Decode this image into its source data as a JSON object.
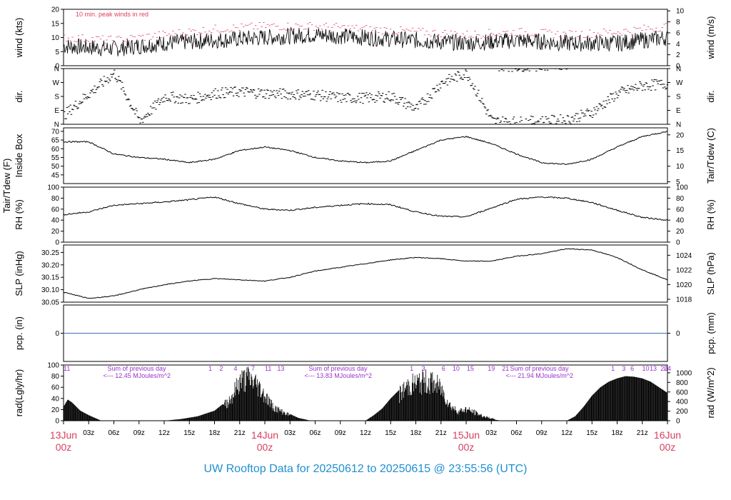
{
  "title": "UW Rooftop Data for 20250612  to  20250615 @ 23:55:56  (UTC)",
  "colors": {
    "title": "#1f8fd1",
    "date": "#d6405f",
    "peak": "#e0405f",
    "note": "#9933cc",
    "pcp": "#3a6fc2",
    "trace": "#000000"
  },
  "chart_data": {
    "type": "line",
    "x_ticks": [
      "03z",
      "06z",
      "09z",
      "12z",
      "15z",
      "18z",
      "21z",
      "03z",
      "06z",
      "09z",
      "12z",
      "15z",
      "18z",
      "21z",
      "03z",
      "06z",
      "09z",
      "12z",
      "15z",
      "18z",
      "21z"
    ],
    "date_labels": [
      {
        "day": "13Jun",
        "time": "00z"
      },
      {
        "day": "14Jun",
        "time": "00z"
      },
      {
        "day": "15Jun",
        "time": "00z"
      },
      {
        "day": "16Jun",
        "time": "00z"
      }
    ],
    "panels": [
      {
        "id": "wind",
        "ylabel": "wind (kts)",
        "ylabel_right": "wind (m/s)",
        "ylim": [
          0,
          20
        ],
        "yticks": [
          "0",
          "5",
          "10",
          "15",
          "20"
        ],
        "yticks_right": [
          "0",
          "2",
          "4",
          "6",
          "8",
          "10"
        ],
        "annotation": "10 min. peak winds in red",
        "series": [
          {
            "name": "wind",
            "hours": [
              0,
              6,
              12,
              18,
              24,
              30,
              36,
              42,
              48,
              54,
              60,
              66,
              72
            ],
            "values": [
              7,
              6,
              8,
              9,
              10,
              11,
              10,
              9,
              8,
              9,
              8,
              8,
              10
            ]
          },
          {
            "name": "peak",
            "hours": [
              0,
              6,
              12,
              18,
              24,
              30,
              36,
              42,
              48,
              54,
              60,
              66,
              72
            ],
            "values": [
              10,
              9,
              11,
              13,
              14,
              14,
              13,
              12,
              11,
              12,
              11,
              12,
              14
            ]
          }
        ]
      },
      {
        "id": "dir",
        "ylabel": "dir.",
        "ylabel_right": "dir.",
        "ylim": [
          0,
          360
        ],
        "yticks": [
          "N",
          "E",
          "S",
          "W",
          "N"
        ],
        "yticks_right": [
          "N",
          "E",
          "S",
          "W",
          "N"
        ],
        "series": [
          {
            "name": "dir",
            "hours": [
              0,
              3,
              6,
              9,
              12,
              15,
              18,
              21,
              24,
              27,
              30,
              33,
              36,
              39,
              42,
              45,
              48,
              51,
              54,
              57,
              60,
              63,
              66,
              69,
              72
            ],
            "values": [
              60,
              200,
              330,
              20,
              180,
              160,
              200,
              210,
              200,
              195,
              190,
              170,
              170,
              180,
              100,
              270,
              330,
              20,
              15,
              20,
              30,
              80,
              200,
              250,
              260
            ]
          }
        ]
      },
      {
        "id": "temp",
        "ylabel": "Tair/Tdew (F)",
        "ylabel2": "Inside Box",
        "ylabel_right": "Tair/Tdew (C)",
        "ylim": [
          40,
          72
        ],
        "yticks": [
          "45",
          "50",
          "55",
          "60",
          "65",
          "70"
        ],
        "yticks_right": [
          "5",
          "10",
          "15",
          "20"
        ],
        "series": [
          {
            "name": "Tair",
            "hours": [
              0,
              3,
              6,
              9,
              12,
              15,
              18,
              21,
              24,
              27,
              30,
              33,
              36,
              39,
              42,
              45,
              48,
              51,
              54,
              57,
              60,
              63,
              66,
              69,
              72
            ],
            "values": [
              64,
              64,
              57,
              55,
              54,
              52,
              54,
              59,
              61,
              59,
              55,
              53,
              52,
              53,
              59,
              65,
              67,
              63,
              57,
              52,
              51,
              54,
              61,
              67,
              70
            ]
          }
        ]
      },
      {
        "id": "rh",
        "ylabel": "RH (%)",
        "ylabel_right": "RH (%)",
        "ylim": [
          0,
          100
        ],
        "yticks": [
          "0",
          "20",
          "40",
          "60",
          "80",
          "100"
        ],
        "yticks_right": [
          "0",
          "20",
          "40",
          "60",
          "80",
          "100"
        ],
        "series": [
          {
            "name": "RH",
            "hours": [
              0,
              3,
              6,
              9,
              12,
              15,
              18,
              21,
              24,
              27,
              30,
              33,
              36,
              39,
              42,
              45,
              48,
              51,
              54,
              57,
              60,
              63,
              66,
              69,
              72
            ],
            "values": [
              50,
              55,
              67,
              70,
              73,
              77,
              82,
              70,
              60,
              58,
              63,
              67,
              70,
              68,
              55,
              47,
              46,
              62,
              78,
              82,
              80,
              72,
              58,
              45,
              40
            ]
          }
        ]
      },
      {
        "id": "slp",
        "ylabel": "SLP (inHg)",
        "ylabel_right": "SLP (hPa)",
        "ylim": [
          30.05,
          30.28
        ],
        "yticks": [
          "30.05",
          "30.10",
          "30.15",
          "30.20",
          "30.25"
        ],
        "yticks_right": [
          "1018",
          "1020",
          "1022",
          "1024"
        ],
        "series": [
          {
            "name": "SLP",
            "hours": [
              0,
              3,
              6,
              9,
              12,
              15,
              18,
              21,
              24,
              27,
              30,
              33,
              36,
              39,
              42,
              45,
              48,
              51,
              54,
              57,
              60,
              63,
              66,
              69,
              72
            ],
            "values": [
              30.09,
              30.065,
              30.075,
              30.1,
              30.12,
              30.135,
              30.145,
              30.14,
              30.135,
              30.15,
              30.175,
              30.19,
              30.205,
              30.22,
              30.23,
              30.225,
              30.215,
              30.215,
              30.235,
              30.245,
              30.265,
              30.26,
              30.23,
              30.18,
              30.14
            ]
          }
        ]
      },
      {
        "id": "pcp",
        "ylabel": "pcp. (in)",
        "ylabel_right": "pcp. (mm)",
        "ylim": [
          -1,
          1
        ],
        "yticks": [
          "0"
        ],
        "yticks_right": [
          "0"
        ],
        "series": [
          {
            "name": "pcp",
            "hours": [
              0,
              72
            ],
            "values": [
              0,
              0
            ]
          }
        ]
      },
      {
        "id": "rad",
        "ylabel": "rad(Lgly/hr)",
        "ylabel_right": "rad (W/m^2)",
        "ylim": [
          0,
          100
        ],
        "yticks": [
          "0",
          "20",
          "40",
          "60",
          "80",
          "100"
        ],
        "yticks_right": [
          "0",
          "200",
          "400",
          "600",
          "800",
          "1000"
        ],
        "notes": [
          {
            "head": "Sum of previous day",
            "body": "<--- 12.45 MJoules/m^2",
            "day": 0
          },
          {
            "head": "Sum of previous day",
            "body": "<--- 13.83 MJoules/m^2",
            "day": 1
          },
          {
            "head": "Sum of previous day",
            "body": "<--- 21.94 MJoules/m^2",
            "day": 2
          }
        ],
        "hour_marks": [
          {
            "day": 0,
            "labels": [
              "11"
            ],
            "hours": [
              0.4
            ]
          },
          {
            "day": 0,
            "labels": [
              "1",
              "2",
              "4",
              "7",
              "11",
              "13"
            ],
            "hours": [
              17.5,
              18.8,
              20.5,
              22.6,
              24.4,
              25.9
            ]
          },
          {
            "day": 1,
            "labels": [
              "1",
              "3",
              "6",
              "10",
              "15",
              "19",
              "21"
            ],
            "hours": [
              41.5,
              42.9,
              45.3,
              46.8,
              48.5,
              51,
              52.7
            ]
          },
          {
            "day": 2,
            "labels": [
              "1",
              "3",
              "6",
              "10",
              "13",
              "20",
              "24"
            ],
            "hours": [
              65.5,
              66.8,
              67.8,
              69.4,
              70.3,
              71.6,
              72
            ]
          }
        ],
        "series": [
          {
            "name": "rad",
            "hours": [
              0,
              0.5,
              1,
              2,
              3,
              4.5,
              12,
              14,
              16,
              18,
              19,
              20,
              21,
              22,
              23,
              24,
              25,
              26,
              27,
              28,
              29.5,
              36,
              37,
              38,
              39,
              40,
              41,
              42,
              43,
              44,
              45,
              46,
              47,
              48,
              49,
              50,
              51,
              52,
              53,
              60,
              61,
              62,
              63,
              64,
              65,
              66,
              67,
              68,
              69,
              70,
              71,
              72
            ],
            "values": [
              25,
              38,
              33,
              18,
              10,
              0,
              0,
              3,
              8,
              18,
              30,
              50,
              85,
              92,
              80,
              55,
              30,
              20,
              12,
              5,
              0,
              0,
              10,
              22,
              40,
              55,
              75,
              80,
              85,
              82,
              70,
              35,
              20,
              25,
              18,
              10,
              5,
              0,
              0,
              0,
              8,
              25,
              45,
              60,
              70,
              76,
              80,
              79,
              76,
              70,
              60,
              50
            ]
          }
        ]
      }
    ]
  }
}
